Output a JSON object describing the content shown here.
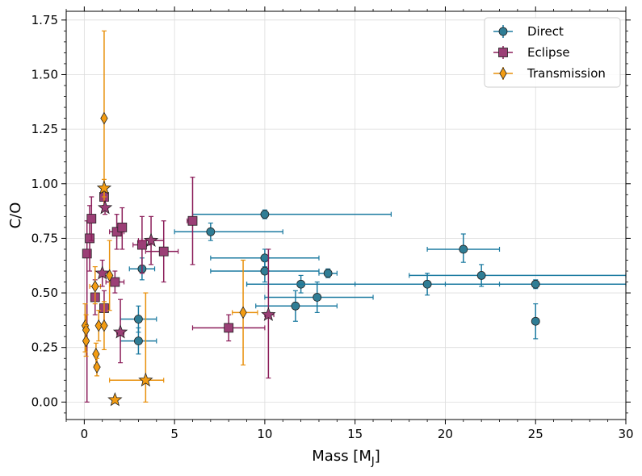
{
  "chart_data": {
    "type": "scatter",
    "xlabel": "Mass [M",
    "xlabel_sub": "J",
    "xlabel_suffix": "]",
    "ylabel": "C/O",
    "xlim": [
      -1,
      30
    ],
    "ylim": [
      -0.08,
      1.79
    ],
    "x_ticks": [
      0,
      5,
      10,
      15,
      20,
      25,
      30
    ],
    "y_ticks": [
      0.0,
      0.25,
      0.5,
      0.75,
      1.0,
      1.25,
      1.5,
      1.75
    ],
    "x_tick_labels": [
      "0",
      "5",
      "10",
      "15",
      "20",
      "25",
      "30"
    ],
    "y_tick_labels": [
      "0.00",
      "0.25",
      "0.50",
      "0.75",
      "1.00",
      "1.25",
      "1.50",
      "1.75"
    ],
    "grid": true,
    "legend_position": "top-right",
    "series": [
      {
        "name": "Direct",
        "marker": "circle",
        "color": "#1b7aa0",
        "face": "#2f7d95",
        "points": [
          {
            "x": 3.2,
            "y": 0.61,
            "xl": 2.5,
            "xh": 3.9,
            "yl": 0.56,
            "yh": 0.66
          },
          {
            "x": 3.0,
            "y": 0.38,
            "xl": 2.0,
            "xh": 4.0,
            "yl": 0.32,
            "yh": 0.44
          },
          {
            "x": 3.0,
            "y": 0.28,
            "xl": 2.0,
            "xh": 4.0,
            "yl": 0.22,
            "yh": 0.34
          },
          {
            "x": 7.0,
            "y": 0.78,
            "xl": 5.0,
            "xh": 11.0,
            "yl": 0.74,
            "yh": 0.82
          },
          {
            "x": 10.0,
            "y": 0.86,
            "xl": 6.0,
            "xh": 17.0,
            "yl": 0.84,
            "yh": 0.88
          },
          {
            "x": 10.0,
            "y": 0.66,
            "xl": 7.0,
            "xh": 13.0,
            "yl": 0.62,
            "yh": 0.7
          },
          {
            "x": 10.0,
            "y": 0.6,
            "xl": 7.0,
            "xh": 13.0,
            "yl": 0.55,
            "yh": 0.65
          },
          {
            "x": 12.0,
            "y": 0.54,
            "xl": 9.0,
            "xh": 15.0,
            "yl": 0.5,
            "yh": 0.58
          },
          {
            "x": 13.5,
            "y": 0.59,
            "xl": 13.0,
            "xh": 14.0,
            "yl": 0.57,
            "yh": 0.61
          },
          {
            "x": 11.7,
            "y": 0.44,
            "xl": 9.5,
            "xh": 14.0,
            "yl": 0.37,
            "yh": 0.51
          },
          {
            "x": 12.9,
            "y": 0.48,
            "xl": 10.0,
            "xh": 16.0,
            "yl": 0.41,
            "yh": 0.55
          },
          {
            "x": 19.0,
            "y": 0.54,
            "xl": 9.0,
            "xh": 23.0,
            "yl": 0.49,
            "yh": 0.59
          },
          {
            "x": 21.0,
            "y": 0.7,
            "xl": 19.0,
            "xh": 23.0,
            "yl": 0.64,
            "yh": 0.77
          },
          {
            "x": 22.0,
            "y": 0.58,
            "xl": 18.0,
            "xh": 30.0,
            "yl": 0.53,
            "yh": 0.63
          },
          {
            "x": 25.0,
            "y": 0.54,
            "xl": 20.0,
            "xh": 30.0,
            "yl": 0.52,
            "yh": 0.56
          },
          {
            "x": 25.0,
            "y": 0.37,
            "xl": 25.0,
            "xh": 25.0,
            "yl": 0.29,
            "yh": 0.45
          }
        ]
      },
      {
        "name": "Eclipse",
        "marker": "square",
        "color": "#8b1e5a",
        "face": "#9b3f76",
        "points": [
          {
            "x": 0.15,
            "y": 0.68,
            "xl": 0.15,
            "xh": 0.15,
            "yl": 0.0,
            "yh": 0.83
          },
          {
            "x": 0.3,
            "y": 0.75,
            "xl": 0.3,
            "xh": 0.3,
            "yl": 0.6,
            "yh": 0.9
          },
          {
            "x": 0.4,
            "y": 0.84,
            "xl": 0.4,
            "xh": 0.4,
            "yl": 0.74,
            "yh": 0.94
          },
          {
            "x": 0.6,
            "y": 0.48,
            "xl": 0.6,
            "xh": 0.6,
            "yl": 0.4,
            "yh": 0.56
          },
          {
            "x": 1.1,
            "y": 0.94,
            "xl": 1.0,
            "xh": 1.2,
            "yl": 0.9,
            "yh": 0.98
          },
          {
            "x": 1.1,
            "y": 0.43,
            "xl": 1.0,
            "xh": 1.2,
            "yl": 0.35,
            "yh": 0.51
          },
          {
            "x": 1.7,
            "y": 0.55,
            "xl": 1.2,
            "xh": 2.2,
            "yl": 0.5,
            "yh": 0.6
          },
          {
            "x": 1.8,
            "y": 0.78,
            "xl": 1.4,
            "xh": 2.2,
            "yl": 0.7,
            "yh": 0.86
          },
          {
            "x": 2.1,
            "y": 0.8,
            "xl": 1.9,
            "xh": 2.3,
            "yl": 0.7,
            "yh": 0.89
          },
          {
            "x": 3.2,
            "y": 0.72,
            "xl": 2.7,
            "xh": 3.7,
            "yl": 0.59,
            "yh": 0.85
          },
          {
            "x": 4.4,
            "y": 0.69,
            "xl": 3.4,
            "xh": 5.2,
            "yl": 0.55,
            "yh": 0.83
          },
          {
            "x": 6.0,
            "y": 0.83,
            "xl": 5.7,
            "xh": 6.2,
            "yl": 0.63,
            "yh": 1.03
          },
          {
            "x": 8.0,
            "y": 0.34,
            "xl": 6.0,
            "xh": 10.0,
            "yl": 0.28,
            "yh": 0.4
          }
        ]
      },
      {
        "name": "Transmission",
        "marker": "diamond",
        "color": "#e8900c",
        "face": "#f39c12",
        "points": [
          {
            "x": 0.05,
            "y": 0.35,
            "xl": 0.05,
            "xh": 0.05,
            "yl": 0.23,
            "yh": 0.45
          },
          {
            "x": 0.1,
            "y": 0.33,
            "xl": 0.1,
            "xh": 0.1,
            "yl": 0.27,
            "yh": 0.4
          },
          {
            "x": 0.1,
            "y": 0.28,
            "xl": 0.1,
            "xh": 0.1,
            "yl": 0.21,
            "yh": 0.35
          },
          {
            "x": 0.6,
            "y": 0.53,
            "xl": 0.3,
            "xh": 0.9,
            "yl": 0.45,
            "yh": 0.62
          },
          {
            "x": 0.65,
            "y": 0.22,
            "xl": 0.65,
            "xh": 0.65,
            "yl": 0.17,
            "yh": 0.27
          },
          {
            "x": 0.7,
            "y": 0.16,
            "xl": 0.7,
            "xh": 0.7,
            "yl": 0.12,
            "yh": 0.2
          },
          {
            "x": 0.8,
            "y": 0.35,
            "xl": 0.8,
            "xh": 0.8,
            "yl": 0.28,
            "yh": 0.42
          },
          {
            "x": 1.1,
            "y": 1.3,
            "xl": 1.1,
            "xh": 1.1,
            "yl": 0.9,
            "yh": 1.7
          },
          {
            "x": 1.1,
            "y": 0.35,
            "xl": 1.1,
            "xh": 1.1,
            "yl": 0.24,
            "yh": 0.46
          },
          {
            "x": 1.4,
            "y": 0.58,
            "xl": 1.4,
            "xh": 1.4,
            "yl": 0.42,
            "yh": 0.74
          },
          {
            "x": 8.8,
            "y": 0.41,
            "xl": 8.2,
            "xh": 9.6,
            "yl": 0.17,
            "yh": 0.65
          }
        ]
      },
      {
        "name": "",
        "marker": "star",
        "color": "#8b1e5a",
        "face": "#9b3f76",
        "points": [
          {
            "x": 1.0,
            "y": 0.59,
            "xl": 0.9,
            "xh": 1.1,
            "yl": 0.53,
            "yh": 0.65
          },
          {
            "x": 1.15,
            "y": 0.89,
            "xl": 1.05,
            "xh": 1.25,
            "yl": 0.86,
            "yh": 0.92
          },
          {
            "x": 2.0,
            "y": 0.32,
            "xl": 1.8,
            "xh": 2.2,
            "yl": 0.18,
            "yh": 0.47
          },
          {
            "x": 3.7,
            "y": 0.74,
            "xl": 3.0,
            "xh": 4.4,
            "yl": 0.63,
            "yh": 0.85
          },
          {
            "x": 10.2,
            "y": 0.4,
            "xl": 10.0,
            "xh": 10.5,
            "yl": 0.11,
            "yh": 0.7
          }
        ]
      },
      {
        "name": "",
        "marker": "star",
        "color": "#e8900c",
        "face": "#f39c12",
        "points": [
          {
            "x": 1.1,
            "y": 0.98,
            "xl": 1.1,
            "xh": 1.1,
            "yl": 0.94,
            "yh": 1.02
          },
          {
            "x": 1.7,
            "y": 0.01,
            "xl": 1.7,
            "xh": 1.7,
            "yl": 0.0,
            "yh": 0.02
          },
          {
            "x": 3.4,
            "y": 0.1,
            "xl": 1.4,
            "xh": 4.4,
            "yl": 0.0,
            "yh": 0.5
          }
        ]
      }
    ]
  }
}
